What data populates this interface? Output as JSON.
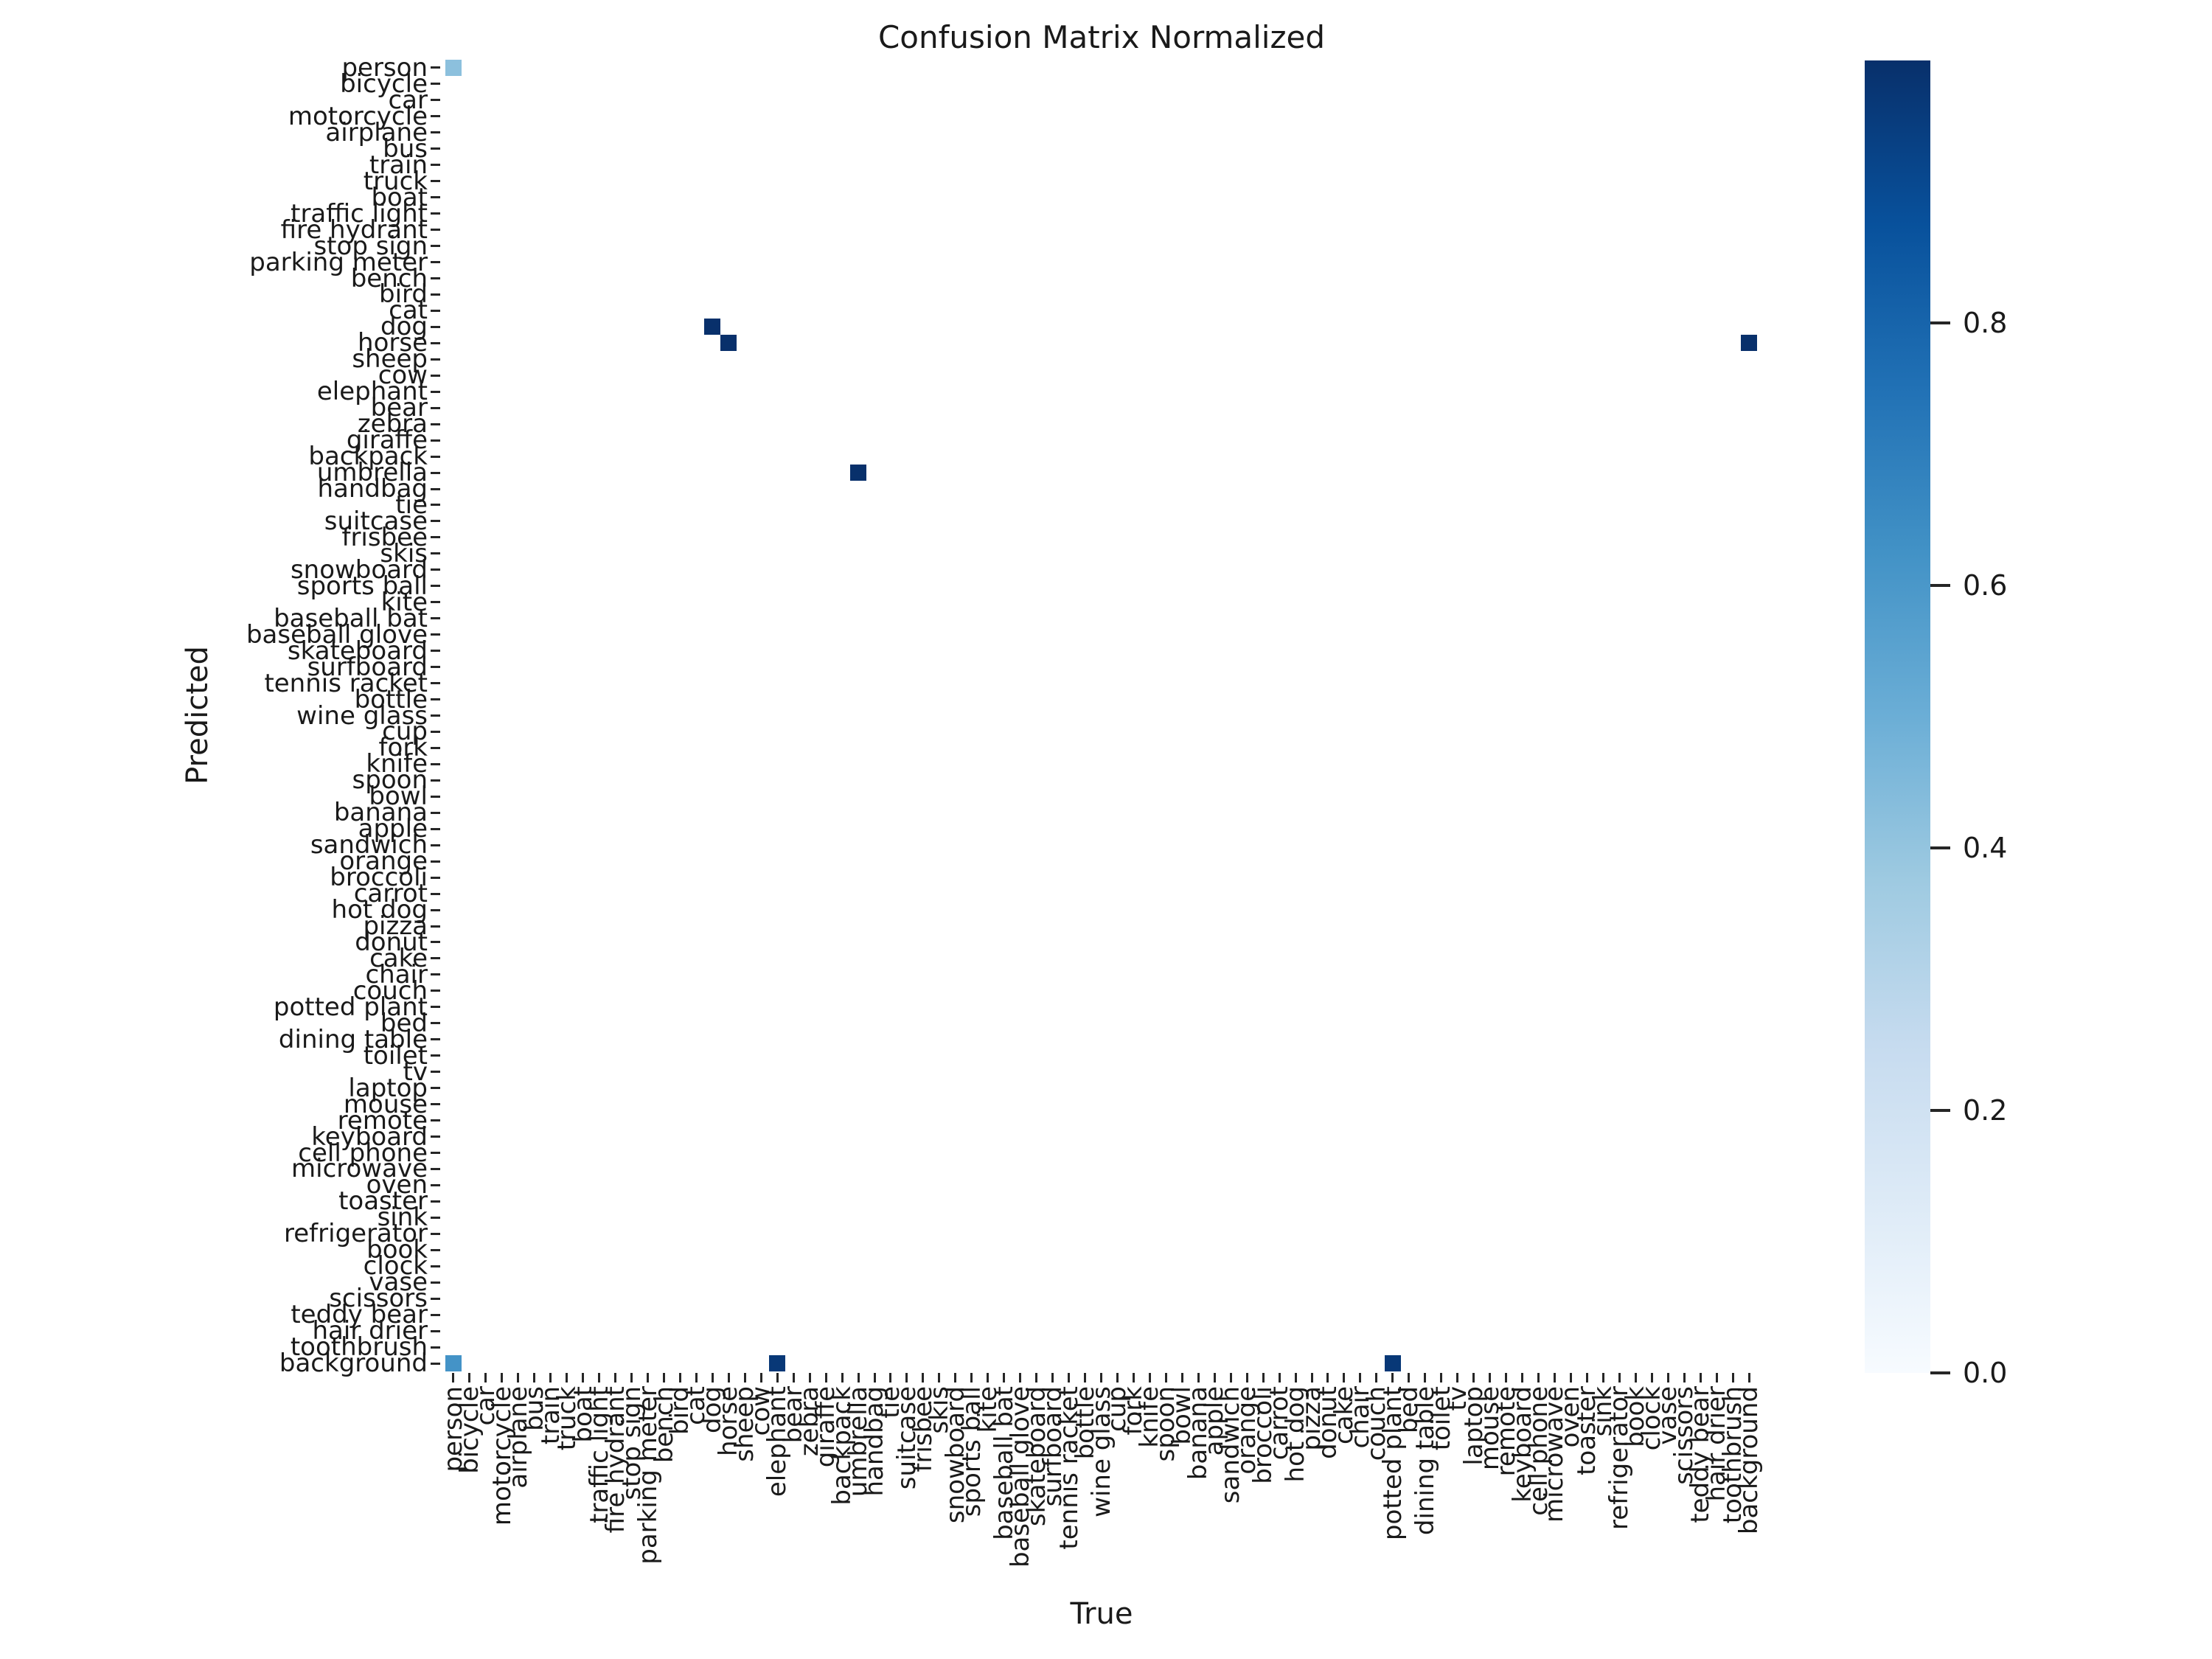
{
  "title": "Confusion Matrix Normalized",
  "chart_data": {
    "type": "heatmap",
    "title": "Confusion Matrix Normalized",
    "xlabel": "True",
    "ylabel": "Predicted",
    "grid": false,
    "classes": [
      "person",
      "bicycle",
      "car",
      "motorcycle",
      "airplane",
      "bus",
      "train",
      "truck",
      "boat",
      "traffic light",
      "fire hydrant",
      "stop sign",
      "parking meter",
      "bench",
      "bird",
      "cat",
      "dog",
      "horse",
      "sheep",
      "cow",
      "elephant",
      "bear",
      "zebra",
      "giraffe",
      "backpack",
      "umbrella",
      "handbag",
      "tie",
      "suitcase",
      "frisbee",
      "skis",
      "snowboard",
      "sports ball",
      "kite",
      "baseball bat",
      "baseball glove",
      "skateboard",
      "surfboard",
      "tennis racket",
      "bottle",
      "wine glass",
      "cup",
      "fork",
      "knife",
      "spoon",
      "bowl",
      "banana",
      "apple",
      "sandwich",
      "orange",
      "broccoli",
      "carrot",
      "hot dog",
      "pizza",
      "donut",
      "cake",
      "chair",
      "couch",
      "potted plant",
      "bed",
      "dining table",
      "toilet",
      "tv",
      "laptop",
      "mouse",
      "remote",
      "keyboard",
      "cell phone",
      "microwave",
      "oven",
      "toaster",
      "sink",
      "refrigerator",
      "book",
      "clock",
      "vase",
      "scissors",
      "teddy bear",
      "hair drier",
      "toothbrush",
      "background"
    ],
    "cells": [
      {
        "predicted": "person",
        "true": "person",
        "value": 0.42
      },
      {
        "predicted": "dog",
        "true": "dog",
        "value": 1.0
      },
      {
        "predicted": "horse",
        "true": "horse",
        "value": 1.0
      },
      {
        "predicted": "horse",
        "true": "background",
        "value": 1.0
      },
      {
        "predicted": "umbrella",
        "true": "umbrella",
        "value": 1.0
      },
      {
        "predicted": "background",
        "true": "person",
        "value": 0.62
      },
      {
        "predicted": "background",
        "true": "elephant",
        "value": 0.97
      },
      {
        "predicted": "background",
        "true": "potted plant",
        "value": 0.97
      }
    ],
    "all_unlisted_cells_value": 0.0,
    "colorbar": {
      "vmin": 0.0,
      "vmax": 1.0,
      "tick_values": [
        0.0,
        0.2,
        0.4,
        0.6,
        0.8
      ],
      "tick_labels": [
        "0.0",
        "0.2",
        "0.4",
        "0.6",
        "0.8"
      ],
      "position": "right"
    },
    "colormap": {
      "name": "Blues",
      "stops": [
        [
          0.0,
          "#f7fbff"
        ],
        [
          0.125,
          "#deebf7"
        ],
        [
          0.25,
          "#c6dbef"
        ],
        [
          0.375,
          "#9ecae1"
        ],
        [
          0.5,
          "#6baed6"
        ],
        [
          0.625,
          "#4292c6"
        ],
        [
          0.75,
          "#2171b5"
        ],
        [
          0.875,
          "#08519c"
        ],
        [
          1.0,
          "#08306b"
        ]
      ]
    }
  }
}
